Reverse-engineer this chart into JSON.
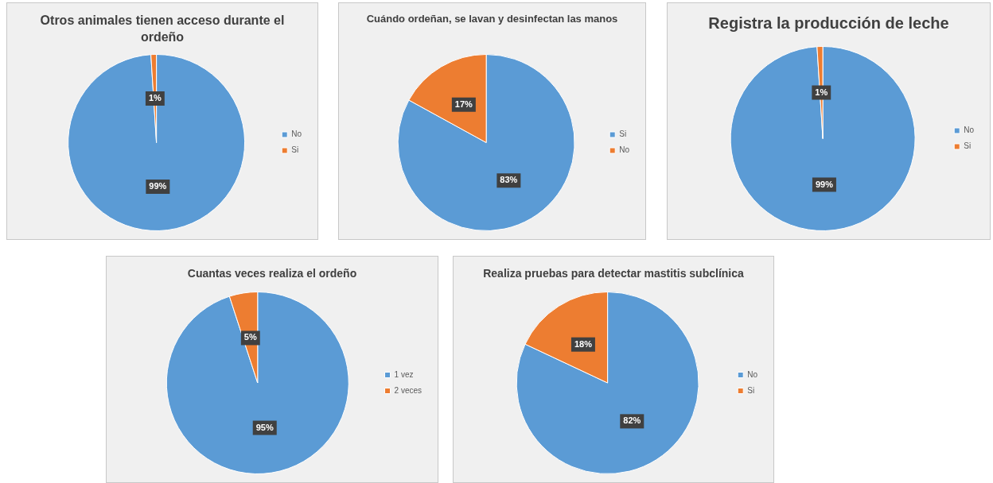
{
  "chart_data": [
    {
      "type": "pie",
      "title": "Otros animales tienen acceso durante el ordeño",
      "categories": [
        "No",
        "Si"
      ],
      "values": [
        99,
        1
      ],
      "colors": [
        "#5b9bd5",
        "#ed7d31"
      ],
      "value_labels": [
        "99%",
        "1%"
      ],
      "legend": "right"
    },
    {
      "type": "pie",
      "title": "Cuándo ordeñan, se lavan y desinfectan las manos",
      "categories": [
        "Si",
        "No"
      ],
      "values": [
        83,
        17
      ],
      "colors": [
        "#5b9bd5",
        "#ed7d31"
      ],
      "value_labels": [
        "83%",
        "17%"
      ],
      "legend": "right"
    },
    {
      "type": "pie",
      "title": "Registra la producción de leche",
      "categories": [
        "No",
        "Si"
      ],
      "values": [
        99,
        1
      ],
      "colors": [
        "#5b9bd5",
        "#ed7d31"
      ],
      "value_labels": [
        "99%",
        "1%"
      ],
      "legend": "right"
    },
    {
      "type": "pie",
      "title": "Cuantas veces realiza el ordeño",
      "categories": [
        "1 vez",
        "2 veces"
      ],
      "values": [
        95,
        5
      ],
      "colors": [
        "#5b9bd5",
        "#ed7d31"
      ],
      "value_labels": [
        "95%",
        "5%"
      ],
      "legend": "right"
    },
    {
      "type": "pie",
      "title": "Realiza pruebas para detectar mastitis subclínica",
      "categories": [
        "No",
        "Si"
      ],
      "values": [
        82,
        18
      ],
      "colors": [
        "#5b9bd5",
        "#ed7d31"
      ],
      "value_labels": [
        "82%",
        "18%"
      ],
      "legend": "right"
    }
  ]
}
